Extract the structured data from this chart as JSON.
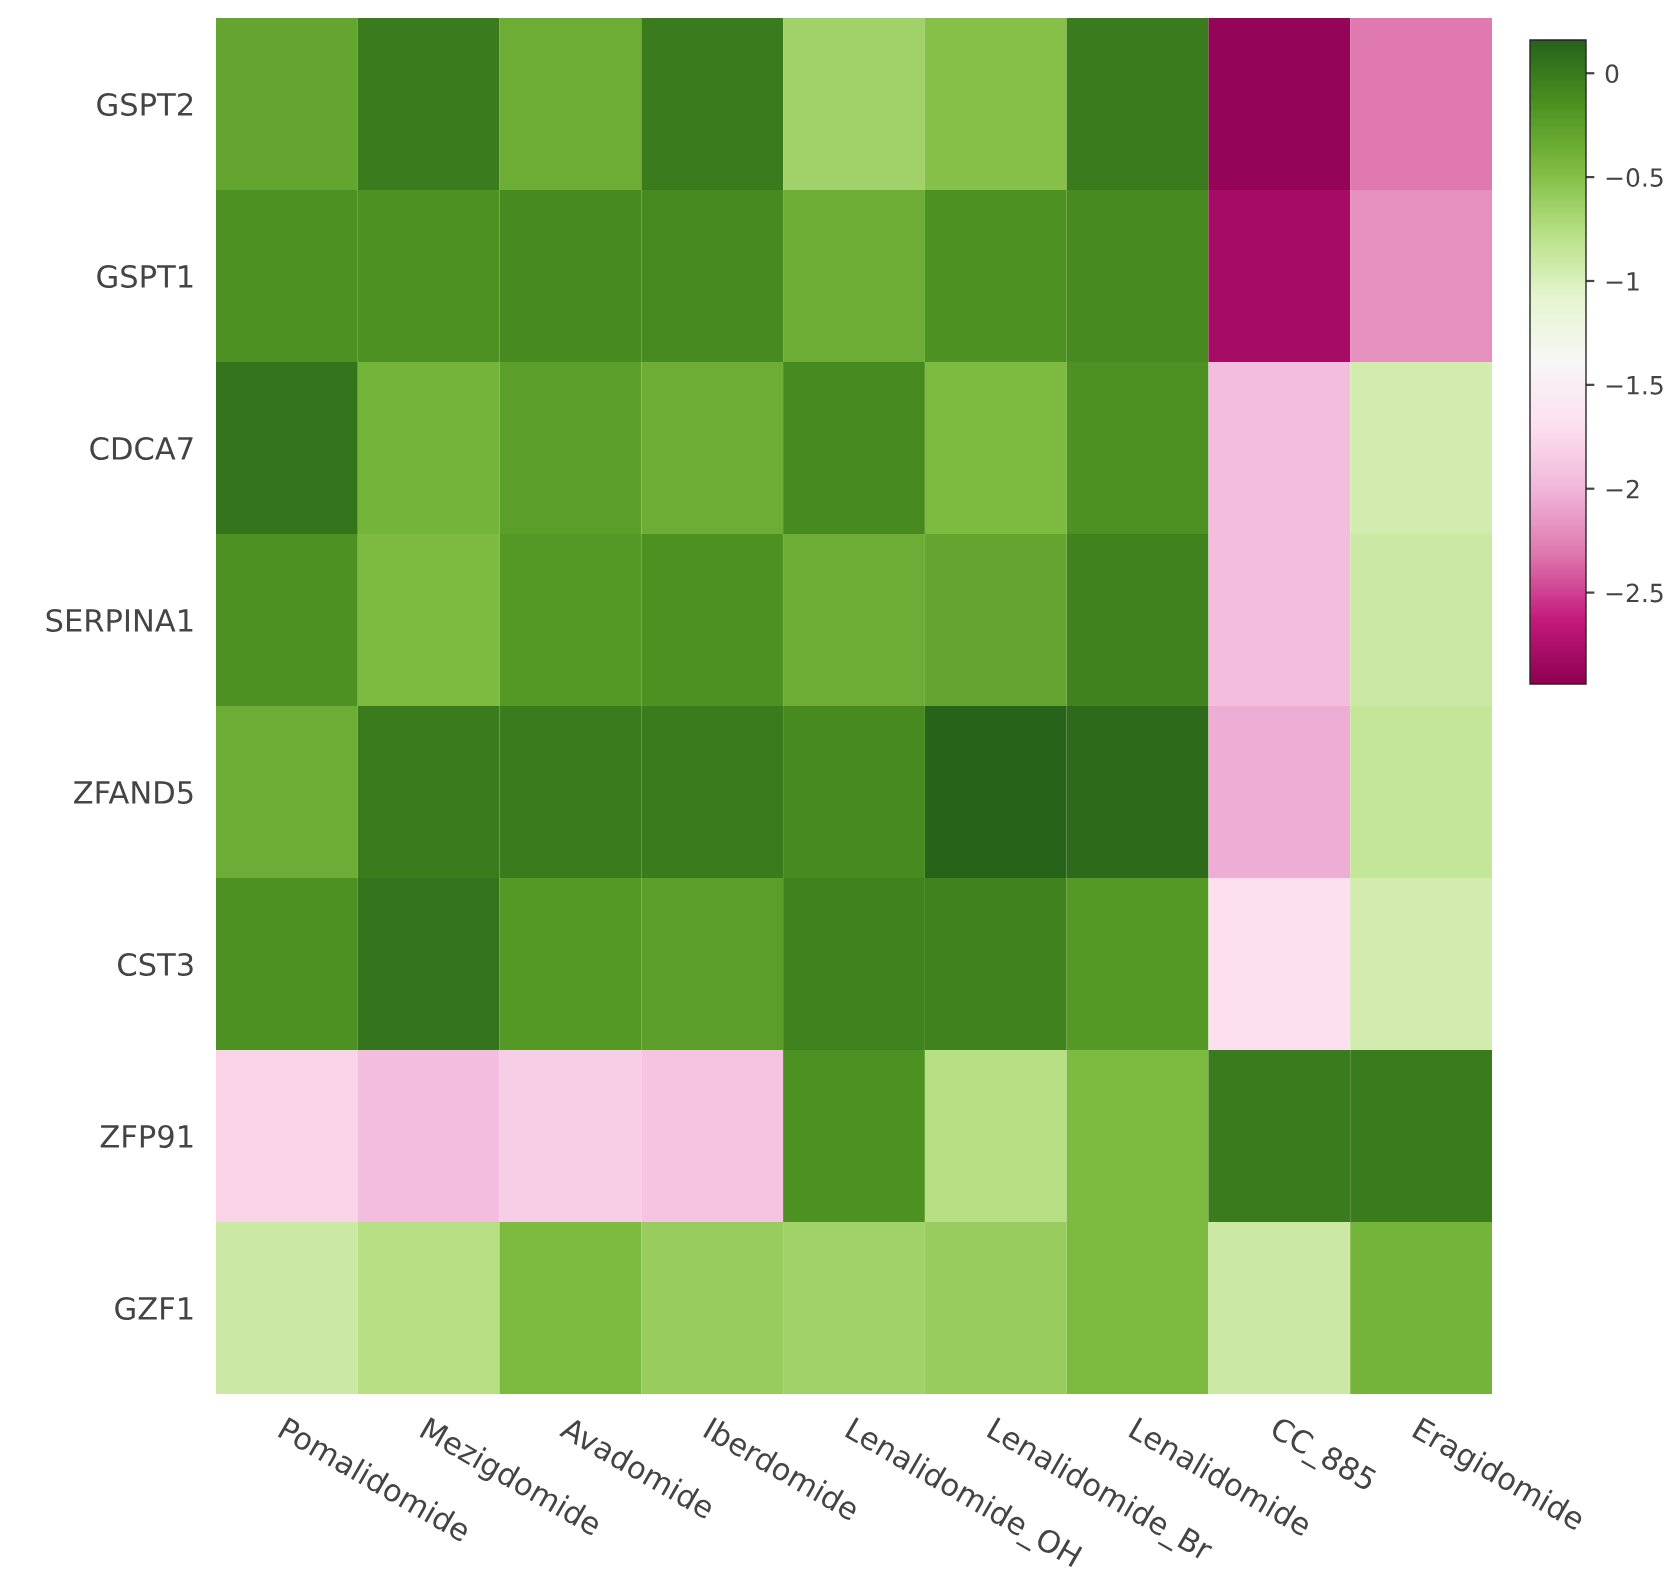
{
  "chart_data": {
    "type": "heatmap",
    "categories": [
      "Pomalidomide",
      "Mezigdomide",
      "Avadomide",
      "Iberdomide",
      "Lenalidomide_OH",
      "Lenalidomide_Br",
      "Lenalidomide",
      "CC_885",
      "Eragidomide"
    ],
    "y_categories": [
      "GSPT2",
      "GSPT1",
      "CDCA7",
      "SERPINA1",
      "ZFAND5",
      "CST3",
      "ZFP91",
      "GZF1"
    ],
    "cells": [
      [
        -0.3,
        0.0,
        -0.35,
        0.0,
        -0.65,
        -0.5,
        0.0,
        -2.9,
        -2.3
      ],
      [
        -0.15,
        -0.15,
        -0.1,
        -0.1,
        -0.35,
        -0.15,
        -0.1,
        -2.8,
        -2.2
      ],
      [
        0.05,
        -0.4,
        -0.25,
        -0.35,
        -0.1,
        -0.45,
        -0.15,
        -1.95,
        -0.95
      ],
      [
        -0.15,
        -0.45,
        -0.2,
        -0.15,
        -0.35,
        -0.3,
        -0.05,
        -1.95,
        -0.9
      ],
      [
        -0.35,
        0.0,
        0.0,
        0.0,
        -0.1,
        0.15,
        0.1,
        -2.05,
        -0.85
      ],
      [
        -0.15,
        0.05,
        -0.2,
        -0.25,
        -0.05,
        -0.05,
        -0.2,
        -1.7,
        -0.95
      ],
      [
        -1.8,
        -1.95,
        -1.85,
        -1.9,
        -0.15,
        -0.75,
        -0.45,
        0.0,
        0.0
      ],
      [
        -0.9,
        -0.75,
        -0.45,
        -0.6,
        -0.65,
        -0.6,
        -0.45,
        -0.9,
        -0.4
      ]
    ],
    "clim": [
      -2.94,
      0.16
    ],
    "cticks": [
      0,
      {
        "value": -0.5,
        "label": "−0.5"
      },
      {
        "value": -1,
        "label": "−1"
      },
      {
        "value": -1.5,
        "label": "−1.5"
      },
      {
        "value": -2,
        "label": "−2"
      },
      {
        "value": -2.5,
        "label": "−2.5"
      }
    ]
  }
}
